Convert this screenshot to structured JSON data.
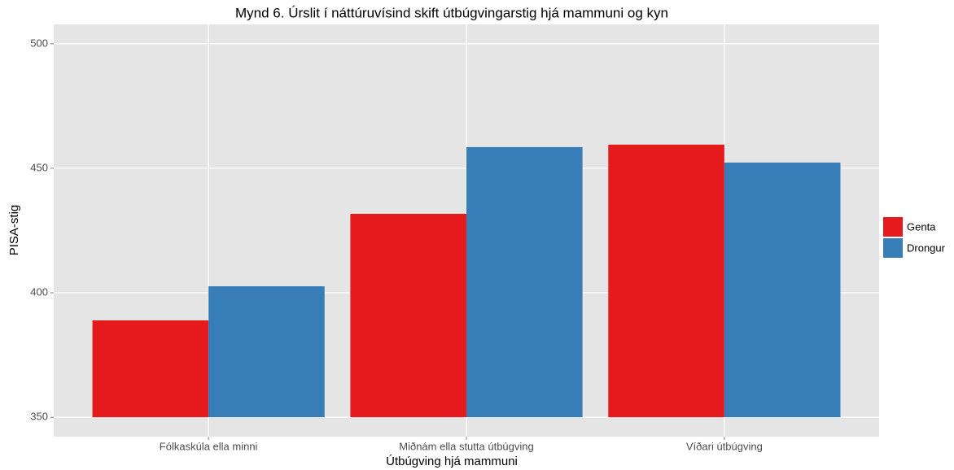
{
  "chart_data": {
    "type": "bar",
    "title": "Mynd 6. Úrslit í náttúruvísind skift útbúgvingarstig hjá mammuni og kyn",
    "x_label": "Útbúgving hjá mammuni",
    "y_label": "PISA-stig",
    "categories": [
      "Fólkaskúla ella minni",
      "Miðnám ella stutta útbúgving",
      "Víðari útbúgving"
    ],
    "series": [
      {
        "name": "Genta",
        "color": "#e41a1c",
        "values": [
          388.9,
          431.7,
          459.5
        ]
      },
      {
        "name": "Drongur",
        "color": "#377eb8",
        "values": [
          402.6,
          458.5,
          452.3
        ]
      }
    ],
    "ylim": [
      342.2,
      507.8
    ],
    "yticks": [
      350,
      400,
      450,
      500
    ],
    "grid": true,
    "legend": "right"
  }
}
